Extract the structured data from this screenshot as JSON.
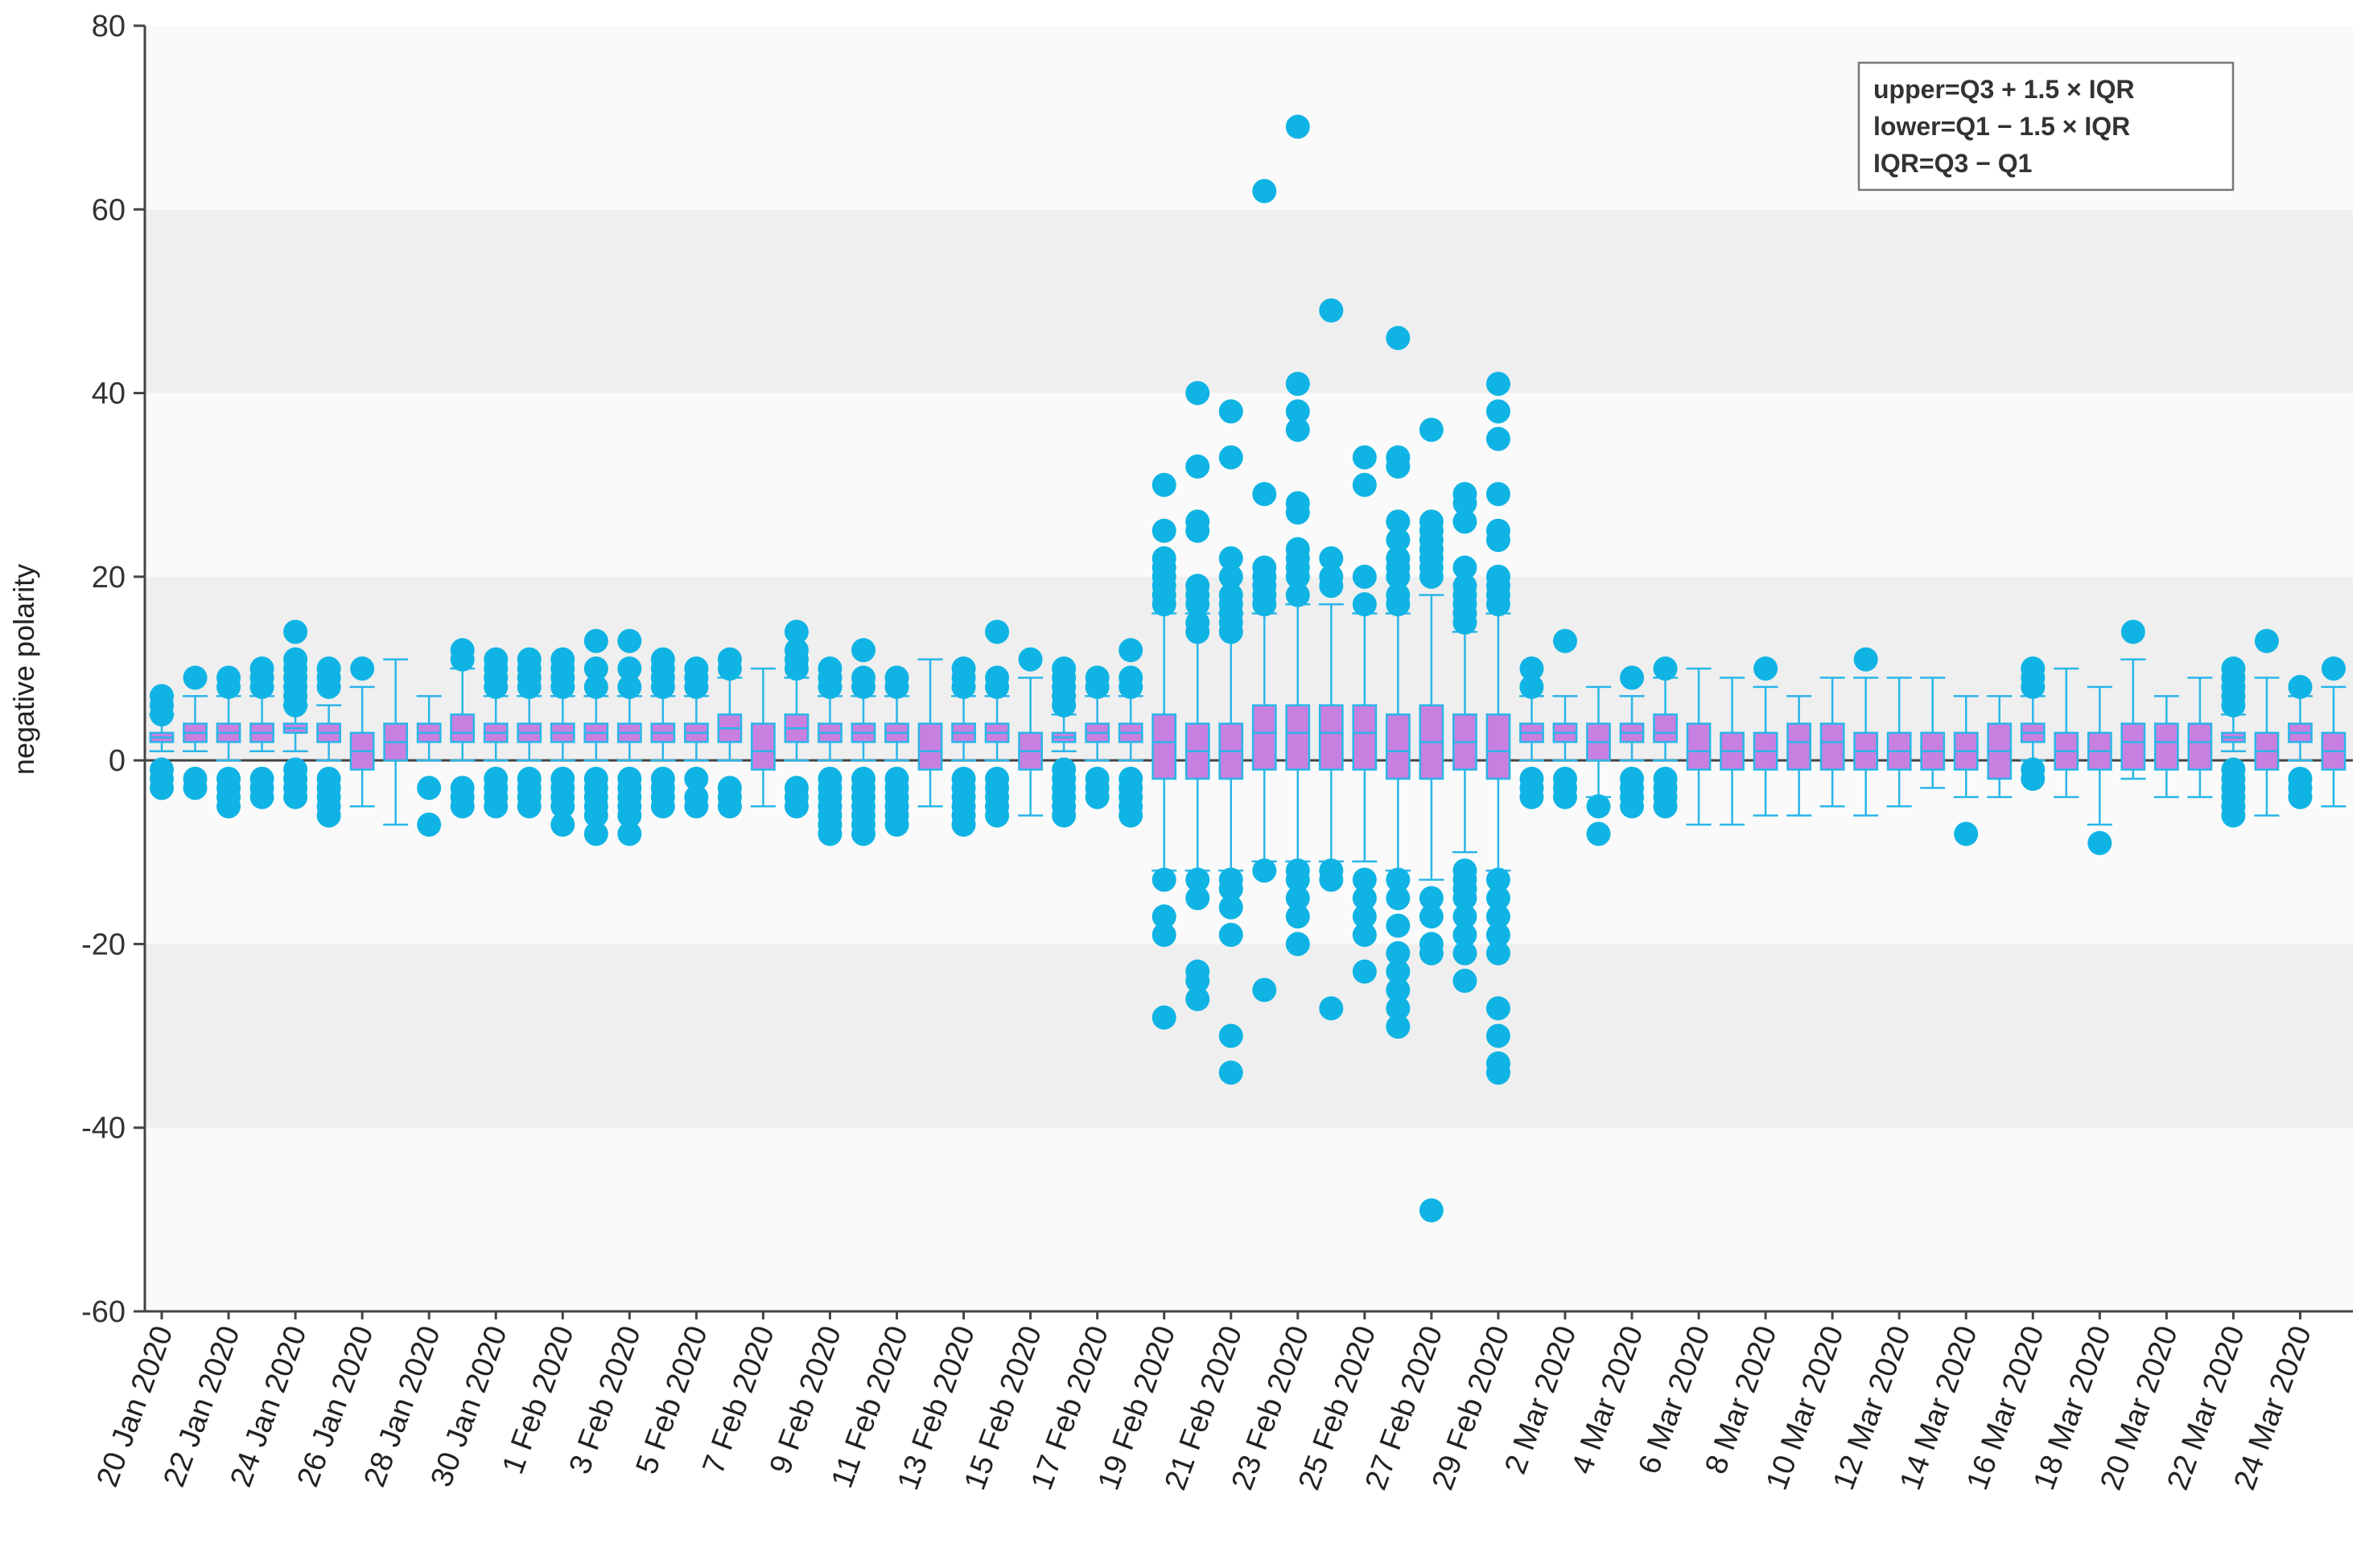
{
  "colors": {
    "box_fill": "#c77fe0",
    "box_stroke": "#29b6e8",
    "whisker": "#29b6e8",
    "median": "#29b6e8",
    "outlier": "#10b4e4",
    "band_shaded": "#efefef",
    "band_light": "#fafafa",
    "axis": "#444444",
    "zero_line": "#444444"
  },
  "chart_data": {
    "type": "box",
    "title": "",
    "xlabel": "",
    "ylabel": "negative polarity",
    "ylim": [
      -60,
      80
    ],
    "yticks": [
      -60,
      -40,
      -20,
      0,
      20,
      40,
      60,
      80
    ],
    "xtick_labels": [
      "20 Jan 2020",
      "22 Jan 2020",
      "24 Jan 2020",
      "26 Jan 2020",
      "28 Jan 2020",
      "30 Jan 2020",
      "1 Feb 2020",
      "3 Feb 2020",
      "5 Feb 2020",
      "7 Feb 2020",
      "9 Feb 2020",
      "11 Feb 2020",
      "13 Feb 2020",
      "15 Feb 2020",
      "17 Feb 2020",
      "19 Feb 2020",
      "21 Feb 2020",
      "23 Feb 2020",
      "25 Feb 2020",
      "27 Feb 2020",
      "29 Feb 2020",
      "2 Mar 2020",
      "4 Mar 2020",
      "6 Mar 2020",
      "8 Mar 2020",
      "10 Mar 2020",
      "12 Mar 2020",
      "14 Mar 2020",
      "16 Mar 2020",
      "18 Mar 2020",
      "20 Mar 2020",
      "22 Mar 2020",
      "24 Mar 2020"
    ],
    "legend": {
      "position": "top-right",
      "lines": [
        "upper=Q3 + 1.5 × IQR",
        "lower=Q1  −  1.5 × IQR",
        "IQR=Q3 − Q1"
      ]
    },
    "boxes": [
      {
        "date": "20 Jan 2020",
        "q1": 2,
        "median": 2.5,
        "q3": 3,
        "lower": 1,
        "upper": 5,
        "outliers": [
          7,
          6,
          5,
          -1,
          -2,
          -3
        ]
      },
      {
        "date": "21 Jan 2020",
        "q1": 2,
        "median": 3,
        "q3": 4,
        "lower": 1,
        "upper": 7,
        "outliers": [
          9,
          -2,
          -3
        ]
      },
      {
        "date": "22 Jan 2020",
        "q1": 2,
        "median": 3,
        "q3": 4,
        "lower": 0,
        "upper": 7,
        "outliers": [
          9,
          8,
          -2,
          -3,
          -4,
          -5
        ]
      },
      {
        "date": "23 Jan 2020",
        "q1": 2,
        "median": 3,
        "q3": 4,
        "lower": 1,
        "upper": 7,
        "outliers": [
          10,
          9,
          8,
          -2,
          -3,
          -4
        ]
      },
      {
        "date": "24 Jan 2020",
        "q1": 3,
        "median": 3.5,
        "q3": 4,
        "lower": 1,
        "upper": 6,
        "outliers": [
          14,
          11,
          10,
          9,
          8,
          7,
          6,
          -1,
          -2,
          -3,
          -4
        ]
      },
      {
        "date": "25 Jan 2020",
        "q1": 2,
        "median": 3,
        "q3": 4,
        "lower": 0,
        "upper": 6,
        "outliers": [
          10,
          9,
          8,
          -2,
          -3,
          -4,
          -5,
          -6
        ]
      },
      {
        "date": "26 Jan 2020",
        "q1": -1,
        "median": 1,
        "q3": 3,
        "lower": -5,
        "upper": 8,
        "outliers": [
          10
        ]
      },
      {
        "date": "27 Jan 2020",
        "q1": 0,
        "median": 2,
        "q3": 4,
        "lower": -7,
        "upper": 11,
        "outliers": []
      },
      {
        "date": "28 Jan 2020",
        "q1": 2,
        "median": 3,
        "q3": 4,
        "lower": 0,
        "upper": 7,
        "outliers": [
          -3,
          -7
        ]
      },
      {
        "date": "29 Jan 2020",
        "q1": 2,
        "median": 3,
        "q3": 5,
        "lower": 0,
        "upper": 10,
        "outliers": [
          12,
          11,
          -3,
          -4,
          -5
        ]
      },
      {
        "date": "30 Jan 2020",
        "q1": 2,
        "median": 3,
        "q3": 4,
        "lower": 0,
        "upper": 7,
        "outliers": [
          11,
          10,
          9,
          8,
          -2,
          -3,
          -4,
          -5
        ]
      },
      {
        "date": "31 Jan 2020",
        "q1": 2,
        "median": 3,
        "q3": 4,
        "lower": 0,
        "upper": 7,
        "outliers": [
          11,
          10,
          9,
          8,
          -2,
          -3,
          -4,
          -5
        ]
      },
      {
        "date": "1 Feb 2020",
        "q1": 2,
        "median": 3,
        "q3": 4,
        "lower": 0,
        "upper": 7,
        "outliers": [
          11,
          10,
          9,
          8,
          -2,
          -3,
          -4,
          -5,
          -7
        ]
      },
      {
        "date": "2 Feb 2020",
        "q1": 2,
        "median": 3,
        "q3": 4,
        "lower": 0,
        "upper": 7,
        "outliers": [
          13,
          10,
          8,
          -2,
          -3,
          -4,
          -5,
          -6,
          -8
        ]
      },
      {
        "date": "3 Feb 2020",
        "q1": 2,
        "median": 3,
        "q3": 4,
        "lower": 0,
        "upper": 7,
        "outliers": [
          13,
          10,
          8,
          -2,
          -3,
          -4,
          -5,
          -6,
          -8
        ]
      },
      {
        "date": "4 Feb 2020",
        "q1": 2,
        "median": 3,
        "q3": 4,
        "lower": 0,
        "upper": 7,
        "outliers": [
          11,
          10,
          9,
          8,
          -2,
          -3,
          -4,
          -5
        ]
      },
      {
        "date": "5 Feb 2020",
        "q1": 2,
        "median": 3,
        "q3": 4,
        "lower": 0,
        "upper": 7,
        "outliers": [
          10,
          9,
          8,
          -2,
          -4,
          -5
        ]
      },
      {
        "date": "6 Feb 2020",
        "q1": 2,
        "median": 3.5,
        "q3": 5,
        "lower": 0,
        "upper": 9,
        "outliers": [
          11,
          10,
          -3,
          -4,
          -5
        ]
      },
      {
        "date": "7 Feb 2020",
        "q1": -1,
        "median": 1,
        "q3": 4,
        "lower": -5,
        "upper": 10,
        "outliers": []
      },
      {
        "date": "8 Feb 2020",
        "q1": 2,
        "median": 3.5,
        "q3": 5,
        "lower": 0,
        "upper": 9,
        "outliers": [
          14,
          12,
          11,
          10,
          -3,
          -4,
          -5
        ]
      },
      {
        "date": "9 Feb 2020",
        "q1": 2,
        "median": 3,
        "q3": 4,
        "lower": 0,
        "upper": 7,
        "outliers": [
          10,
          9,
          8,
          -2,
          -3,
          -4,
          -5,
          -6,
          -7,
          -8
        ]
      },
      {
        "date": "10 Feb 2020",
        "q1": 2,
        "median": 3,
        "q3": 4,
        "lower": 0,
        "upper": 7,
        "outliers": [
          12,
          9,
          8,
          -2,
          -3,
          -4,
          -5,
          -6,
          -7,
          -8
        ]
      },
      {
        "date": "11 Feb 2020",
        "q1": 2,
        "median": 3,
        "q3": 4,
        "lower": 0,
        "upper": 7,
        "outliers": [
          9,
          8,
          -2,
          -3,
          -4,
          -5,
          -6,
          -7
        ]
      },
      {
        "date": "12 Feb 2020",
        "q1": -1,
        "median": 1,
        "q3": 4,
        "lower": -5,
        "upper": 11,
        "outliers": []
      },
      {
        "date": "13 Feb 2020",
        "q1": 2,
        "median": 3,
        "q3": 4,
        "lower": 0,
        "upper": 7,
        "outliers": [
          10,
          9,
          8,
          -2,
          -3,
          -4,
          -5,
          -6,
          -7
        ]
      },
      {
        "date": "14 Feb 2020",
        "q1": 2,
        "median": 3,
        "q3": 4,
        "lower": 0,
        "upper": 7,
        "outliers": [
          14,
          9,
          8,
          -2,
          -3,
          -4,
          -5,
          -6
        ]
      },
      {
        "date": "15 Feb 2020",
        "q1": -1,
        "median": 1,
        "q3": 3,
        "lower": -6,
        "upper": 9,
        "outliers": [
          11
        ]
      },
      {
        "date": "16 Feb 2020",
        "q1": 2,
        "median": 2.5,
        "q3": 3,
        "lower": 1,
        "upper": 5,
        "outliers": [
          10,
          9,
          8,
          7,
          6,
          -1,
          -2,
          -3,
          -4,
          -5,
          -6
        ]
      },
      {
        "date": "17 Feb 2020",
        "q1": 2,
        "median": 3,
        "q3": 4,
        "lower": 0,
        "upper": 7,
        "outliers": [
          9,
          8,
          -2,
          -3,
          -4
        ]
      },
      {
        "date": "18 Feb 2020",
        "q1": 2,
        "median": 3,
        "q3": 4,
        "lower": 0,
        "upper": 7,
        "outliers": [
          12,
          9,
          8,
          -2,
          -3,
          -4,
          -5,
          -6
        ]
      },
      {
        "date": "19 Feb 2020",
        "q1": -2,
        "median": 2,
        "q3": 5,
        "lower": -12,
        "upper": 16,
        "outliers": [
          30,
          25,
          22,
          21,
          20,
          19,
          18,
          17,
          -13,
          -17,
          -19,
          -28
        ]
      },
      {
        "date": "20 Feb 2020",
        "q1": -2,
        "median": 1,
        "q3": 4,
        "lower": -12,
        "upper": 16,
        "outliers": [
          40,
          32,
          26,
          25,
          19,
          18,
          17,
          15,
          14,
          -13,
          -15,
          -23,
          -24,
          -26
        ]
      },
      {
        "date": "21 Feb 2020",
        "q1": -2,
        "median": 1,
        "q3": 4,
        "lower": -12,
        "upper": 16,
        "outliers": [
          38,
          33,
          22,
          20,
          18,
          17,
          16,
          15,
          14,
          -13,
          -14,
          -16,
          -19,
          -30,
          -34
        ]
      },
      {
        "date": "22 Feb 2020",
        "q1": -1,
        "median": 3,
        "q3": 6,
        "lower": -11,
        "upper": 16,
        "outliers": [
          62,
          29,
          21,
          20,
          19,
          18,
          17,
          -12,
          -25
        ]
      },
      {
        "date": "23 Feb 2020",
        "q1": -1,
        "median": 3,
        "q3": 6,
        "lower": -11,
        "upper": 17,
        "outliers": [
          69,
          41,
          38,
          36,
          28,
          27,
          23,
          22,
          21,
          20,
          18,
          -12,
          -13,
          -15,
          -17,
          -20
        ]
      },
      {
        "date": "24 Feb 2020",
        "q1": -1,
        "median": 3,
        "q3": 6,
        "lower": -11,
        "upper": 17,
        "outliers": [
          49,
          22,
          20,
          19,
          -12,
          -13,
          -27
        ]
      },
      {
        "date": "25 Feb 2020",
        "q1": -1,
        "median": 3,
        "q3": 6,
        "lower": -11,
        "upper": 16,
        "outliers": [
          33,
          30,
          20,
          17,
          -13,
          -15,
          -17,
          -19,
          -23
        ]
      },
      {
        "date": "26 Feb 2020",
        "q1": -2,
        "median": 1,
        "q3": 5,
        "lower": -12,
        "upper": 16,
        "outliers": [
          46,
          33,
          32,
          26,
          24,
          22,
          21,
          20,
          18,
          17,
          -13,
          -15,
          -18,
          -21,
          -23,
          -25,
          -27,
          -29
        ]
      },
      {
        "date": "27 Feb 2020",
        "q1": -2,
        "median": 2,
        "q3": 6,
        "lower": -13,
        "upper": 18,
        "outliers": [
          36,
          26,
          25,
          24,
          23,
          22,
          21,
          20,
          -15,
          -17,
          -20,
          -21,
          -49
        ]
      },
      {
        "date": "28 Feb 2020",
        "q1": -1,
        "median": 2,
        "q3": 5,
        "lower": -10,
        "upper": 14,
        "outliers": [
          29,
          28,
          26,
          21,
          19,
          18,
          17,
          16,
          15,
          -12,
          -13,
          -14,
          -15,
          -17,
          -19,
          -21,
          -24
        ]
      },
      {
        "date": "29 Feb 2020",
        "q1": -2,
        "median": 1,
        "q3": 5,
        "lower": -12,
        "upper": 16,
        "outliers": [
          41,
          38,
          35,
          29,
          25,
          24,
          20,
          19,
          18,
          17,
          -13,
          -15,
          -17,
          -19,
          -21,
          -27,
          -30,
          -33,
          -34
        ]
      },
      {
        "date": "1 Mar 2020",
        "q1": 2,
        "median": 3,
        "q3": 4,
        "lower": 0,
        "upper": 7,
        "outliers": [
          10,
          8,
          -2,
          -3,
          -4
        ]
      },
      {
        "date": "2 Mar 2020",
        "q1": 2,
        "median": 3,
        "q3": 4,
        "lower": 0,
        "upper": 7,
        "outliers": [
          13,
          -2,
          -3,
          -4
        ]
      },
      {
        "date": "3 Mar 2020",
        "q1": 0,
        "median": 2,
        "q3": 4,
        "lower": -4,
        "upper": 8,
        "outliers": [
          -5,
          -8
        ]
      },
      {
        "date": "4 Mar 2020",
        "q1": 2,
        "median": 3,
        "q3": 4,
        "lower": 0,
        "upper": 7,
        "outliers": [
          9,
          -2,
          -3,
          -4,
          -5
        ]
      },
      {
        "date": "5 Mar 2020",
        "q1": 2,
        "median": 3,
        "q3": 5,
        "lower": 0,
        "upper": 9,
        "outliers": [
          10,
          -2,
          -3,
          -4,
          -5
        ]
      },
      {
        "date": "6 Mar 2020",
        "q1": -1,
        "median": 1,
        "q3": 4,
        "lower": -7,
        "upper": 10,
        "outliers": []
      },
      {
        "date": "7 Mar 2020",
        "q1": -1,
        "median": 1,
        "q3": 3,
        "lower": -7,
        "upper": 9,
        "outliers": []
      },
      {
        "date": "8 Mar 2020",
        "q1": -1,
        "median": 1,
        "q3": 3,
        "lower": -6,
        "upper": 8,
        "outliers": [
          10
        ]
      },
      {
        "date": "9 Mar 2020",
        "q1": -1,
        "median": 2,
        "q3": 4,
        "lower": -6,
        "upper": 7,
        "outliers": []
      },
      {
        "date": "10 Mar 2020",
        "q1": -1,
        "median": 2,
        "q3": 4,
        "lower": -5,
        "upper": 9,
        "outliers": []
      },
      {
        "date": "11 Mar 2020",
        "q1": -1,
        "median": 1,
        "q3": 3,
        "lower": -6,
        "upper": 9,
        "outliers": [
          11
        ]
      },
      {
        "date": "12 Mar 2020",
        "q1": -1,
        "median": 1,
        "q3": 3,
        "lower": -5,
        "upper": 9,
        "outliers": []
      },
      {
        "date": "13 Mar 2020",
        "q1": -1,
        "median": 1,
        "q3": 3,
        "lower": -3,
        "upper": 9,
        "outliers": []
      },
      {
        "date": "14 Mar 2020",
        "q1": -1,
        "median": 1,
        "q3": 3,
        "lower": -4,
        "upper": 7,
        "outliers": [
          -8
        ]
      },
      {
        "date": "15 Mar 2020",
        "q1": -2,
        "median": 1,
        "q3": 4,
        "lower": -4,
        "upper": 7,
        "outliers": []
      },
      {
        "date": "16 Mar 2020",
        "q1": 2,
        "median": 3,
        "q3": 4,
        "lower": 0,
        "upper": 7,
        "outliers": [
          10,
          9,
          8,
          -1,
          -2
        ]
      },
      {
        "date": "17 Mar 2020",
        "q1": -1,
        "median": 1,
        "q3": 3,
        "lower": -4,
        "upper": 10,
        "outliers": []
      },
      {
        "date": "18 Mar 2020",
        "q1": -1,
        "median": 1,
        "q3": 3,
        "lower": -7,
        "upper": 8,
        "outliers": [
          -9
        ]
      },
      {
        "date": "19 Mar 2020",
        "q1": -1,
        "median": 2,
        "q3": 4,
        "lower": -2,
        "upper": 11,
        "outliers": [
          14
        ]
      },
      {
        "date": "20 Mar 2020",
        "q1": -1,
        "median": 2,
        "q3": 4,
        "lower": -4,
        "upper": 7,
        "outliers": []
      },
      {
        "date": "21 Mar 2020",
        "q1": -1,
        "median": 2,
        "q3": 4,
        "lower": -4,
        "upper": 9,
        "outliers": []
      },
      {
        "date": "22 Mar 2020",
        "q1": 2,
        "median": 2.5,
        "q3": 3,
        "lower": 1,
        "upper": 5,
        "outliers": [
          10,
          9,
          8,
          7,
          6,
          -1,
          -2,
          -3,
          -4,
          -5,
          -6
        ]
      },
      {
        "date": "23 Mar 2020",
        "q1": -1,
        "median": 1,
        "q3": 3,
        "lower": -6,
        "upper": 9,
        "outliers": [
          13
        ]
      },
      {
        "date": "24 Mar 2020",
        "q1": 2,
        "median": 3,
        "q3": 4,
        "lower": 0,
        "upper": 7,
        "outliers": [
          8,
          -2,
          -3,
          -4
        ]
      },
      {
        "date": "25 Mar 2020",
        "q1": -1,
        "median": 1,
        "q3": 3,
        "lower": -5,
        "upper": 8,
        "outliers": [
          10
        ]
      }
    ]
  }
}
